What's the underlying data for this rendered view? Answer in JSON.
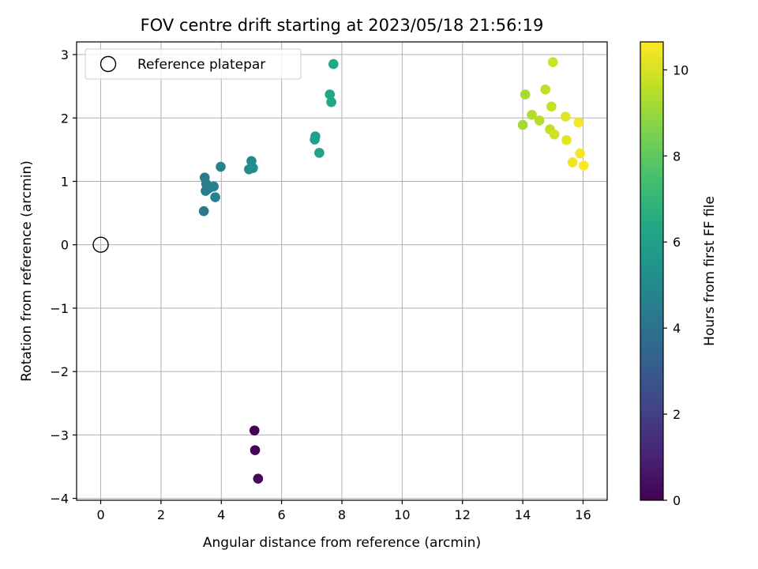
{
  "chart_data": {
    "type": "scatter",
    "title": "FOV centre drift starting at 2023/05/18 21:56:19",
    "xlabel": "Angular distance from reference (arcmin)",
    "ylabel": "Rotation from reference (arcmin)",
    "xlim": [
      -0.8,
      16.8
    ],
    "ylim": [
      -4.03,
      3.2
    ],
    "xticks": [
      0,
      2,
      4,
      6,
      8,
      10,
      12,
      14,
      16
    ],
    "yticks": [
      -4,
      -3,
      -2,
      -1,
      0,
      1,
      2,
      3
    ],
    "xtick_labels": [
      "0",
      "2",
      "4",
      "6",
      "8",
      "10",
      "12",
      "14",
      "16"
    ],
    "ytick_labels": [
      "−4",
      "−3",
      "−2",
      "−1",
      "0",
      "1",
      "2",
      "3"
    ],
    "grid": true,
    "legend": {
      "position": "top-left",
      "entries": [
        {
          "label": "Reference platepar",
          "marker": "open-circle"
        }
      ]
    },
    "reference_point": {
      "x": 0,
      "y": 0
    },
    "colorbar": {
      "label": "Hours from first FF file",
      "range": [
        0,
        10.65
      ],
      "ticks": [
        0,
        2,
        4,
        6,
        8,
        10
      ],
      "tick_labels": [
        "0",
        "2",
        "4",
        "6",
        "8",
        "10"
      ],
      "colormap": "viridis"
    },
    "points": [
      {
        "x": 5.1,
        "y": -2.93,
        "h": 0.0
      },
      {
        "x": 5.12,
        "y": -3.24,
        "h": 0.1
      },
      {
        "x": 5.22,
        "y": -3.69,
        "h": 0.2
      },
      {
        "x": 3.42,
        "y": 0.53,
        "h": 4.3
      },
      {
        "x": 3.45,
        "y": 1.06,
        "h": 4.4
      },
      {
        "x": 3.5,
        "y": 0.96,
        "h": 4.4
      },
      {
        "x": 3.48,
        "y": 0.85,
        "h": 4.5
      },
      {
        "x": 3.55,
        "y": 0.88,
        "h": 4.5
      },
      {
        "x": 3.62,
        "y": 0.9,
        "h": 4.5
      },
      {
        "x": 3.75,
        "y": 0.92,
        "h": 4.6
      },
      {
        "x": 3.8,
        "y": 0.75,
        "h": 4.6
      },
      {
        "x": 3.98,
        "y": 1.23,
        "h": 4.7
      },
      {
        "x": 4.92,
        "y": 1.19,
        "h": 5.0
      },
      {
        "x": 5.0,
        "y": 1.32,
        "h": 5.0
      },
      {
        "x": 5.05,
        "y": 1.21,
        "h": 5.1
      },
      {
        "x": 7.1,
        "y": 1.66,
        "h": 6.0
      },
      {
        "x": 7.12,
        "y": 1.71,
        "h": 6.0
      },
      {
        "x": 7.25,
        "y": 1.45,
        "h": 6.1
      },
      {
        "x": 7.6,
        "y": 2.37,
        "h": 6.3
      },
      {
        "x": 7.65,
        "y": 2.25,
        "h": 6.3
      },
      {
        "x": 7.72,
        "y": 2.85,
        "h": 6.4
      },
      {
        "x": 14.0,
        "y": 1.89,
        "h": 9.2
      },
      {
        "x": 14.08,
        "y": 2.37,
        "h": 9.3
      },
      {
        "x": 14.3,
        "y": 2.05,
        "h": 9.4
      },
      {
        "x": 14.55,
        "y": 1.96,
        "h": 9.5
      },
      {
        "x": 14.75,
        "y": 2.45,
        "h": 9.6
      },
      {
        "x": 14.9,
        "y": 1.82,
        "h": 9.7
      },
      {
        "x": 14.95,
        "y": 2.18,
        "h": 9.7
      },
      {
        "x": 15.0,
        "y": 2.88,
        "h": 9.8
      },
      {
        "x": 15.05,
        "y": 1.74,
        "h": 9.9
      },
      {
        "x": 15.42,
        "y": 2.02,
        "h": 10.2
      },
      {
        "x": 15.45,
        "y": 1.65,
        "h": 10.2
      },
      {
        "x": 15.65,
        "y": 1.3,
        "h": 10.4
      },
      {
        "x": 15.85,
        "y": 1.93,
        "h": 10.5
      },
      {
        "x": 15.9,
        "y": 1.44,
        "h": 10.5
      },
      {
        "x": 16.02,
        "y": 1.25,
        "h": 10.6
      }
    ]
  }
}
